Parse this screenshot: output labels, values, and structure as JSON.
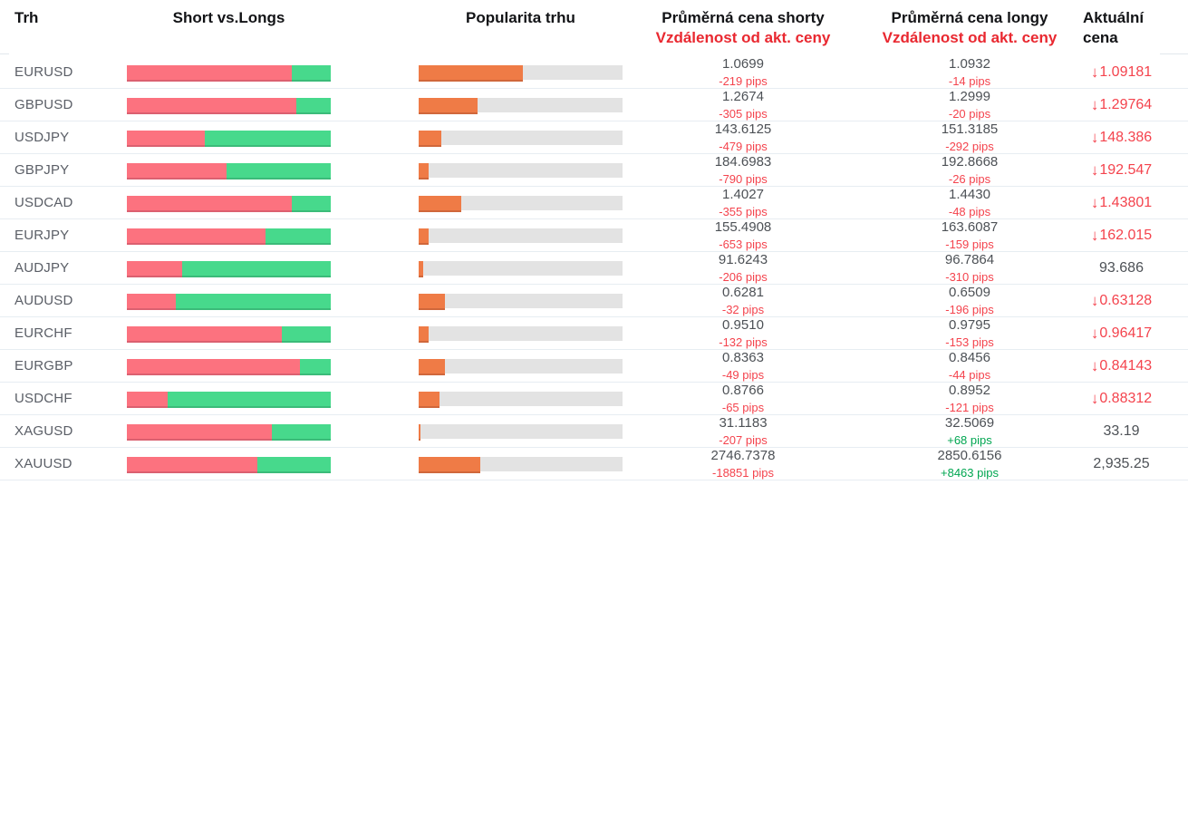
{
  "table": {
    "columns": {
      "market": "Trh",
      "short_vs_longs": "Short vs.Longs",
      "popularity": "Popularita trhu",
      "avg_short_title": "Průměrná cena shorty",
      "avg_short_subtitle": "Vzdálenost od akt. ceny",
      "avg_long_title": "Průměrná cena longy",
      "avg_long_subtitle": "Vzdálenost od akt. ceny",
      "current_price_title": "Aktuální cena"
    },
    "rows": [
      {
        "market": "EURUSD",
        "short_pct": 81,
        "long_pct": 19,
        "popularity_pct": 51,
        "short_price": "1.0699",
        "short_pips": "-219 pips",
        "long_price": "1.0932",
        "long_pips": "-14 pips",
        "current": "1.09181",
        "direction": "down"
      },
      {
        "market": "GBPUSD",
        "short_pct": 83,
        "long_pct": 17,
        "popularity_pct": 29,
        "short_price": "1.2674",
        "short_pips": "-305 pips",
        "long_price": "1.2999",
        "long_pips": "-20 pips",
        "current": "1.29764",
        "direction": "down"
      },
      {
        "market": "USDJPY",
        "short_pct": 38,
        "long_pct": 62,
        "popularity_pct": 11,
        "short_price": "143.6125",
        "short_pips": "-479 pips",
        "long_price": "151.3185",
        "long_pips": "-292 pips",
        "current": "148.386",
        "direction": "down"
      },
      {
        "market": "GBPJPY",
        "short_pct": 49,
        "long_pct": 51,
        "popularity_pct": 5,
        "short_price": "184.6983",
        "short_pips": "-790 pips",
        "long_price": "192.8668",
        "long_pips": "-26 pips",
        "current": "192.547",
        "direction": "down"
      },
      {
        "market": "USDCAD",
        "short_pct": 81,
        "long_pct": 19,
        "popularity_pct": 21,
        "short_price": "1.4027",
        "short_pips": "-355 pips",
        "long_price": "1.4430",
        "long_pips": "-48 pips",
        "current": "1.43801",
        "direction": "down"
      },
      {
        "market": "EURJPY",
        "short_pct": 68,
        "long_pct": 32,
        "popularity_pct": 5,
        "short_price": "155.4908",
        "short_pips": "-653 pips",
        "long_price": "163.6087",
        "long_pips": "-159 pips",
        "current": "162.015",
        "direction": "down"
      },
      {
        "market": "AUDJPY",
        "short_pct": 27,
        "long_pct": 73,
        "popularity_pct": 2,
        "short_price": "91.6243",
        "short_pips": "-206 pips",
        "long_price": "96.7864",
        "long_pips": "-310 pips",
        "current": "93.686",
        "direction": "none"
      },
      {
        "market": "AUDUSD",
        "short_pct": 24,
        "long_pct": 76,
        "popularity_pct": 13,
        "short_price": "0.6281",
        "short_pips": "-32 pips",
        "long_price": "0.6509",
        "long_pips": "-196 pips",
        "current": "0.63128",
        "direction": "down"
      },
      {
        "market": "EURCHF",
        "short_pct": 76,
        "long_pct": 24,
        "popularity_pct": 5,
        "short_price": "0.9510",
        "short_pips": "-132 pips",
        "long_price": "0.9795",
        "long_pips": "-153 pips",
        "current": "0.96417",
        "direction": "down"
      },
      {
        "market": "EURGBP",
        "short_pct": 85,
        "long_pct": 15,
        "popularity_pct": 13,
        "short_price": "0.8363",
        "short_pips": "-49 pips",
        "long_price": "0.8456",
        "long_pips": "-44 pips",
        "current": "0.84143",
        "direction": "down"
      },
      {
        "market": "USDCHF",
        "short_pct": 20,
        "long_pct": 80,
        "popularity_pct": 10,
        "short_price": "0.8766",
        "short_pips": "-65 pips",
        "long_price": "0.8952",
        "long_pips": "-121 pips",
        "current": "0.88312",
        "direction": "down"
      },
      {
        "market": "XAGUSD",
        "short_pct": 71,
        "long_pct": 29,
        "popularity_pct": 1,
        "short_price": "31.1183",
        "short_pips": "-207 pips",
        "long_price": "32.5069",
        "long_pips": "+68 pips",
        "current": "33.19",
        "direction": "none"
      },
      {
        "market": "XAUUSD",
        "short_pct": 64,
        "long_pct": 36,
        "popularity_pct": 30,
        "short_price": "2746.7378",
        "short_pips": "-18851 pips",
        "long_price": "2850.6156",
        "long_pips": "+8463 pips",
        "current": "2,935.25",
        "direction": "none"
      }
    ]
  },
  "icons": {
    "down_arrow": "↓"
  },
  "colors": {
    "short_bar": "#fc727f",
    "long_bar": "#47d98c",
    "popularity_bar": "#ef7b46",
    "bar_track": "#e3e3e3",
    "negative": "#f4434d",
    "positive": "#00a651",
    "header_red": "#e92830"
  }
}
